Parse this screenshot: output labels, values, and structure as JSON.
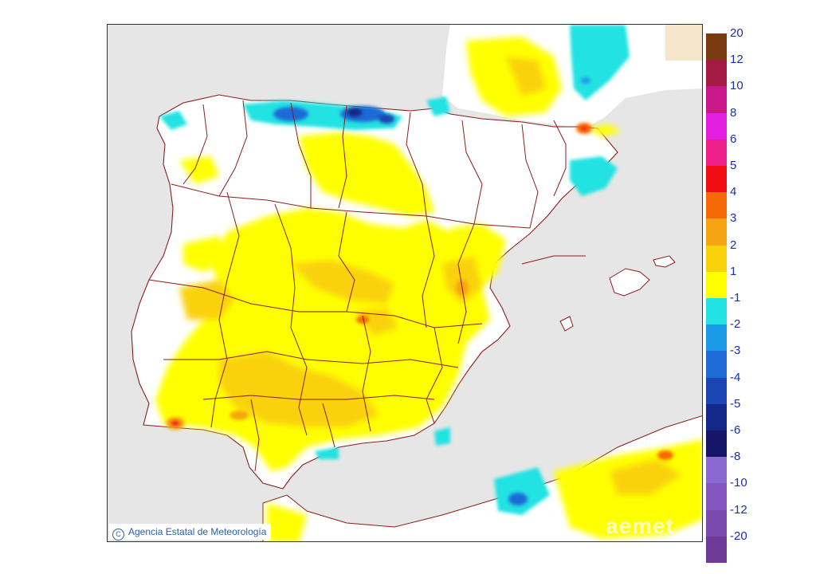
{
  "credit": {
    "text": "Agencia Estatal de Meteorología",
    "icon": "copyright-icon"
  },
  "watermark": {
    "text": "aemet"
  },
  "legend": {
    "positive": [
      {
        "label": "20",
        "color": "#7a3b10"
      },
      {
        "label": "12",
        "color": "#a31a45"
      },
      {
        "label": "10",
        "color": "#c8188a"
      },
      {
        "label": "8",
        "color": "#e21ee0"
      },
      {
        "label": "6",
        "color": "#f0208a"
      },
      {
        "label": "5",
        "color": "#ee0e12"
      },
      {
        "label": "4",
        "color": "#f56a06"
      },
      {
        "label": "3",
        "color": "#f5a511"
      },
      {
        "label": "2",
        "color": "#f9d20b"
      },
      {
        "label": "1",
        "color": "#ffff00"
      }
    ],
    "negative": [
      {
        "label": "-1",
        "color": "#22e2e2"
      },
      {
        "label": "-2",
        "color": "#1a9be6"
      },
      {
        "label": "-3",
        "color": "#1e6bd6"
      },
      {
        "label": "-4",
        "color": "#1b45b2"
      },
      {
        "label": "-5",
        "color": "#132888"
      },
      {
        "label": "-6",
        "color": "#161566"
      },
      {
        "label": "-8",
        "color": "#8a6ad0"
      },
      {
        "label": "-10",
        "color": "#8258c0"
      },
      {
        "label": "-12",
        "color": "#7a4aae"
      },
      {
        "label": "-20",
        "color": "#6e3a98"
      }
    ]
  }
}
